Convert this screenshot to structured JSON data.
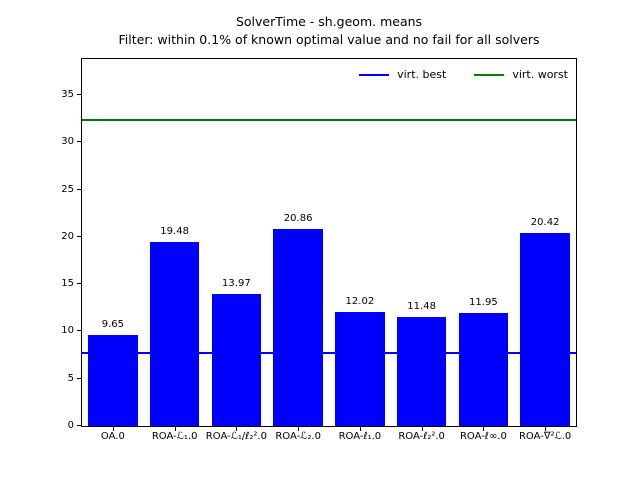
{
  "figure": {
    "title_line1": "SolverTime - sh.geom. means",
    "title_line2": "Filter: within 0.1% of known optimal value and no fail for all solvers"
  },
  "chart_data": {
    "type": "bar",
    "title": "SolverTime - sh.geom. means",
    "subtitle": "Filter: within 0.1% of known optimal value and no fail for all solvers",
    "categories": [
      "OA.0",
      "ROA-ℒ₁.0",
      "ROA-ℒ₁/ℓ₂².0",
      "ROA-ℒ₂.0",
      "ROA-ℓ₁.0",
      "ROA-ℓ₂².0",
      "ROA-ℓ∞.0",
      "ROA-∇²ℒ.0"
    ],
    "values": [
      9.65,
      19.48,
      13.97,
      20.86,
      12.02,
      11.48,
      11.95,
      20.42
    ],
    "bar_labels": [
      "9.65",
      "19.48",
      "13.97",
      "20.86",
      "12.02",
      "11.48",
      "11.95",
      "20.42"
    ],
    "bar_color": "#0000ff",
    "hlines": [
      {
        "label": "virt. best",
        "value": 7.7,
        "color": "#0000ff"
      },
      {
        "label": "virt. worst",
        "value": 32.4,
        "color": "#008000"
      }
    ],
    "yticks": [
      0,
      5,
      10,
      15,
      20,
      25,
      30,
      35
    ],
    "ylim": [
      0,
      38.8
    ],
    "xlabel": "",
    "ylabel": "",
    "legend_position": "upper right",
    "legend_entries": [
      "virt. best",
      "virt. worst"
    ],
    "grid": false,
    "axis_color": "#000000",
    "background_color": "#ffffff"
  }
}
